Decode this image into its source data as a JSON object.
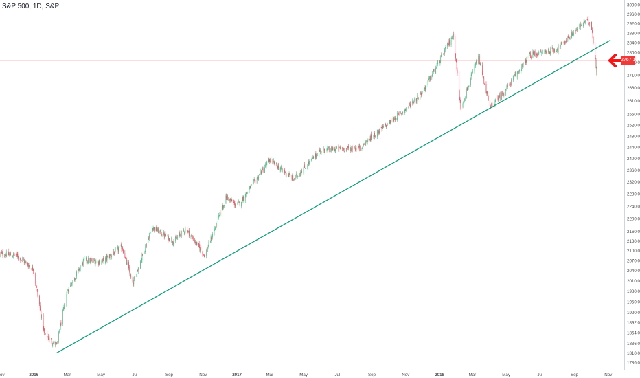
{
  "legend": {
    "text": "S&P 500, 1D, S&P"
  },
  "colors": {
    "up": "#53b987",
    "down": "#eb4d5c",
    "trendline": "#139b7f",
    "arrow": "#f01818",
    "price_line": "#f6a3a3",
    "price_badge": "#f03a3a"
  },
  "price_axis": {
    "current_price_label": "2767.13",
    "ticks": [
      "3000.00",
      "2960.00",
      "2920.00",
      "2880.00",
      "2840.00",
      "2800.00",
      "2760.00",
      "2710.00",
      "2660.00",
      "2610.00",
      "2560.00",
      "2520.00",
      "2480.00",
      "2440.00",
      "2400.00",
      "2360.00",
      "2320.00",
      "2280.00",
      "2240.00",
      "2200.00",
      "2160.00",
      "2130.00",
      "2100.00",
      "2070.00",
      "2040.00",
      "2010.00",
      "1980.00",
      "1950.00",
      "1920.00",
      "1892.00",
      "1864.00",
      "1836.00",
      "1810.00",
      "1786.00"
    ],
    "scale": "log"
  },
  "time_axis": {
    "ticks": [
      "ov",
      "2016",
      "Mar",
      "May",
      "Jul",
      "Sep",
      "Nov",
      "2017",
      "Mar",
      "May",
      "Jul",
      "Sep",
      "Nov",
      "2018",
      "Mar",
      "May",
      "Jul",
      "Sep",
      "Nov"
    ]
  },
  "chart_data": {
    "type": "candlestick",
    "title": "",
    "symbol": "S&P 500",
    "interval": "1D",
    "source": "S&P",
    "x_range": [
      "2015-11",
      "2018-11"
    ],
    "ylim": [
      1760,
      3020
    ],
    "y_scale": "log",
    "approximate_close_path": [
      {
        "date": "2015-11-01",
        "close": 2090
      },
      {
        "date": "2015-12-01",
        "close": 2085
      },
      {
        "date": "2015-12-31",
        "close": 2044
      },
      {
        "date": "2016-01-20",
        "close": 1860
      },
      {
        "date": "2016-02-11",
        "close": 1829
      },
      {
        "date": "2016-03-01",
        "close": 1980
      },
      {
        "date": "2016-04-01",
        "close": 2072
      },
      {
        "date": "2016-05-01",
        "close": 2065
      },
      {
        "date": "2016-06-08",
        "close": 2112
      },
      {
        "date": "2016-06-27",
        "close": 2000
      },
      {
        "date": "2016-08-01",
        "close": 2173
      },
      {
        "date": "2016-09-09",
        "close": 2128
      },
      {
        "date": "2016-10-01",
        "close": 2168
      },
      {
        "date": "2016-11-04",
        "close": 2085
      },
      {
        "date": "2016-12-13",
        "close": 2271
      },
      {
        "date": "2017-01-01",
        "close": 2239
      },
      {
        "date": "2017-03-01",
        "close": 2395
      },
      {
        "date": "2017-04-13",
        "close": 2329
      },
      {
        "date": "2017-06-01",
        "close": 2430
      },
      {
        "date": "2017-08-10",
        "close": 2438
      },
      {
        "date": "2017-09-01",
        "close": 2476
      },
      {
        "date": "2017-11-01",
        "close": 2579
      },
      {
        "date": "2017-12-01",
        "close": 2642
      },
      {
        "date": "2018-01-26",
        "close": 2873
      },
      {
        "date": "2018-02-08",
        "close": 2581
      },
      {
        "date": "2018-03-12",
        "close": 2783
      },
      {
        "date": "2018-04-02",
        "close": 2582
      },
      {
        "date": "2018-05-01",
        "close": 2655
      },
      {
        "date": "2018-06-12",
        "close": 2787
      },
      {
        "date": "2018-08-01",
        "close": 2813
      },
      {
        "date": "2018-09-20",
        "close": 2930
      },
      {
        "date": "2018-10-01",
        "close": 2924
      },
      {
        "date": "2018-10-11",
        "close": 2728
      },
      {
        "date": "2018-10-12",
        "close": 2767.13
      }
    ],
    "trendline": {
      "from": {
        "date": "2016-02-11",
        "price": 1810
      },
      "to": {
        "date": "2018-11-05",
        "price": 2850
      }
    },
    "annotations": [
      {
        "type": "arrow",
        "direction": "left",
        "near_date": "2018-10-20",
        "near_price": 2767
      }
    ],
    "grid": false,
    "current_price": 2767.13
  }
}
